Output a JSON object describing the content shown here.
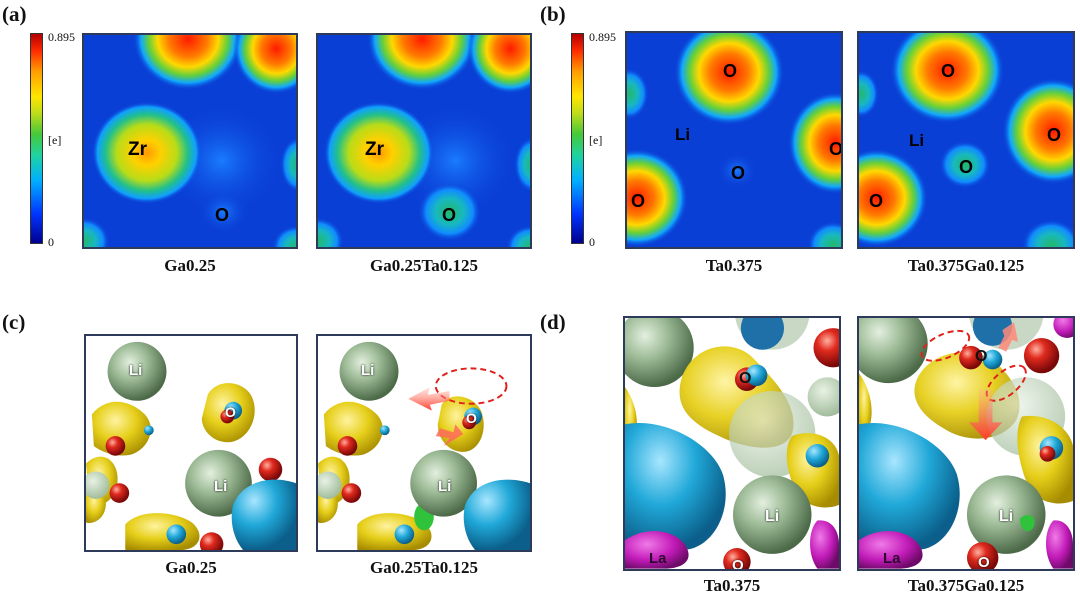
{
  "panels": {
    "a": {
      "tag": "(a)",
      "colorbar": {
        "max": "0.895",
        "unit": "[e]",
        "min": "0"
      },
      "maps": [
        {
          "caption": "Ga0.25",
          "labels": {
            "zr": "Zr",
            "o": "O"
          }
        },
        {
          "caption": "Ga0.25Ta0.125",
          "labels": {
            "zr": "Zr",
            "o": "O"
          }
        }
      ]
    },
    "b": {
      "tag": "(b)",
      "colorbar": {
        "max": "0.895",
        "unit": "[e]",
        "min": "0"
      },
      "maps": [
        {
          "caption": "Ta0.375",
          "labels": {
            "o_top": "O",
            "li": "Li",
            "o_center": "O",
            "o_right": "O",
            "o_left": "O"
          }
        },
        {
          "caption": "Ta0.375Ga0.125",
          "labels": {
            "o_top": "O",
            "li": "Li",
            "o_center": "O",
            "o_right": "O",
            "o_left": "O"
          }
        }
      ]
    },
    "c": {
      "tag": "(c)",
      "views": [
        {
          "caption": "Ga0.25",
          "labels": {
            "li_top": "Li",
            "o": "O",
            "li_mid": "Li"
          }
        },
        {
          "caption": "Ga0.25Ta0.125",
          "labels": {
            "li_top": "Li",
            "o": "O",
            "li_mid": "Li"
          }
        }
      ]
    },
    "d": {
      "tag": "(d)",
      "views": [
        {
          "caption": "Ta0.375",
          "labels": {
            "o_top": "O",
            "li": "Li",
            "la": "La",
            "o_bottom": "O"
          }
        },
        {
          "caption": "Ta0.375Ga0.125",
          "labels": {
            "o_top": "O",
            "li": "Li",
            "la": "La",
            "o_bottom": "O"
          }
        }
      ]
    }
  },
  "colors": {
    "map_background": "#0a3fd6",
    "frame": "#2d3a5a",
    "isosurface_yellow": "#e8d21c",
    "isosurface_cyan": "#1fa9d6",
    "li_green": "#8fb08a",
    "o_red": "#d42020",
    "la_magenta": "#c21bb8",
    "arrow_red": "#ff3a2a"
  }
}
